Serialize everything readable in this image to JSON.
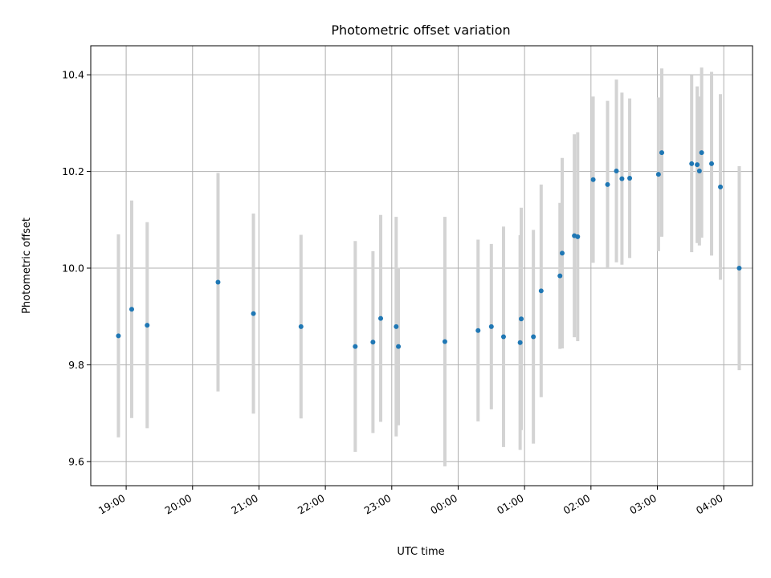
{
  "chart_data": {
    "type": "scatter",
    "title": "Photometric offset variation",
    "xlabel": "UTC time",
    "ylabel": "Photometric offset",
    "x_tick_labels": [
      "19:00",
      "20:00",
      "21:00",
      "22:00",
      "23:00",
      "00:00",
      "01:00",
      "02:00",
      "03:00",
      "04:00"
    ],
    "y_ticks": [
      9.6,
      9.8,
      10.0,
      10.2,
      10.4
    ],
    "y_tick_labels": [
      "9.6",
      "9.8",
      "10.0",
      "10.2",
      "10.4"
    ],
    "xlim": [
      "18:28",
      "04:26"
    ],
    "ylim": [
      9.55,
      10.46
    ],
    "grid": true,
    "marker_color": "#1f77b4",
    "errorbar_color": "#d3d3d3",
    "points": [
      {
        "x": "18:53",
        "y": 9.86,
        "yerr": 0.21
      },
      {
        "x": "19:05",
        "y": 9.915,
        "yerr": 0.225
      },
      {
        "x": "19:19",
        "y": 9.882,
        "yerr": 0.213
      },
      {
        "x": "20:23",
        "y": 9.971,
        "yerr": 0.226
      },
      {
        "x": "20:55",
        "y": 9.906,
        "yerr": 0.207
      },
      {
        "x": "21:38",
        "y": 9.879,
        "yerr": 0.19
      },
      {
        "x": "22:27",
        "y": 9.838,
        "yerr": 0.218
      },
      {
        "x": "22:43",
        "y": 9.847,
        "yerr": 0.188
      },
      {
        "x": "22:50",
        "y": 9.896,
        "yerr": 0.214
      },
      {
        "x": "23:04",
        "y": 9.879,
        "yerr": 0.227
      },
      {
        "x": "23:06",
        "y": 9.838,
        "yerr": 0.163
      },
      {
        "x": "23:48",
        "y": 9.848,
        "yerr": 0.258
      },
      {
        "x": "00:18",
        "y": 9.871,
        "yerr": 0.188
      },
      {
        "x": "00:30",
        "y": 9.879,
        "yerr": 0.171
      },
      {
        "x": "00:41",
        "y": 9.858,
        "yerr": 0.228
      },
      {
        "x": "00:56",
        "y": 9.846,
        "yerr": 0.222
      },
      {
        "x": "00:57",
        "y": 9.895,
        "yerr": 0.23
      },
      {
        "x": "01:08",
        "y": 9.858,
        "yerr": 0.221
      },
      {
        "x": "01:15",
        "y": 9.953,
        "yerr": 0.22
      },
      {
        "x": "01:32",
        "y": 9.984,
        "yerr": 0.151
      },
      {
        "x": "01:34",
        "y": 10.031,
        "yerr": 0.197
      },
      {
        "x": "01:45",
        "y": 10.067,
        "yerr": 0.21
      },
      {
        "x": "01:48",
        "y": 10.065,
        "yerr": 0.216
      },
      {
        "x": "02:02",
        "y": 10.183,
        "yerr": 0.172
      },
      {
        "x": "02:15",
        "y": 10.173,
        "yerr": 0.173
      },
      {
        "x": "02:23",
        "y": 10.201,
        "yerr": 0.189
      },
      {
        "x": "02:28",
        "y": 10.185,
        "yerr": 0.178
      },
      {
        "x": "02:35",
        "y": 10.186,
        "yerr": 0.165
      },
      {
        "x": "03:01",
        "y": 10.194,
        "yerr": 0.159
      },
      {
        "x": "03:04",
        "y": 10.239,
        "yerr": 0.174
      },
      {
        "x": "03:31",
        "y": 10.216,
        "yerr": 0.183
      },
      {
        "x": "03:36",
        "y": 10.214,
        "yerr": 0.162
      },
      {
        "x": "03:38",
        "y": 10.201,
        "yerr": 0.154
      },
      {
        "x": "03:40",
        "y": 10.239,
        "yerr": 0.176
      },
      {
        "x": "03:49",
        "y": 10.216,
        "yerr": 0.19
      },
      {
        "x": "03:57",
        "y": 10.168,
        "yerr": 0.192
      },
      {
        "x": "04:14",
        "y": 10.0,
        "yerr": 0.211
      }
    ]
  }
}
